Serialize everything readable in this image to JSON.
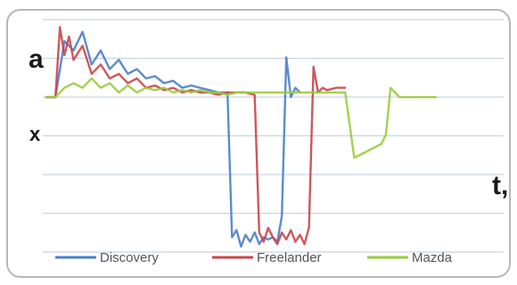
{
  "chart_data": {
    "type": "line",
    "ylabel": "a",
    "xlabel": "t,",
    "y_marker": "x",
    "ylim": [
      0,
      10
    ],
    "xlim": [
      0,
      100
    ],
    "grid": true,
    "legend_placement": "bottom",
    "series": [
      {
        "name": "Discovery",
        "color": "#4a7fc8",
        "x": [
          0,
          2,
          4,
          6,
          8,
          10,
          12,
          14,
          16,
          18,
          20,
          22,
          24,
          26,
          28,
          30,
          32,
          34,
          36,
          38,
          40,
          41,
          42,
          43,
          44,
          45,
          46,
          47,
          48,
          49,
          50,
          51,
          52,
          53,
          54,
          55,
          56
        ],
        "y": [
          6.6,
          6.6,
          9.0,
          8.6,
          9.4,
          8.0,
          8.6,
          7.8,
          8.2,
          7.6,
          7.8,
          7.4,
          7.5,
          7.2,
          7.3,
          7.0,
          7.1,
          7.0,
          6.9,
          6.8,
          6.8,
          0.6,
          0.9,
          0.2,
          0.7,
          0.4,
          0.8,
          0.3,
          0.6,
          0.5,
          0.6,
          0.4,
          1.5,
          8.3,
          6.6,
          7.0,
          6.8
        ]
      },
      {
        "name": "Freelander",
        "color": "#c8454a",
        "x": [
          0,
          2,
          3,
          4,
          5,
          6,
          8,
          10,
          12,
          14,
          16,
          18,
          20,
          22,
          24,
          26,
          28,
          30,
          32,
          34,
          36,
          38,
          40,
          42,
          44,
          46,
          47,
          48,
          49,
          50,
          51,
          52,
          53,
          54,
          55,
          56,
          57,
          58,
          59,
          60,
          61,
          62,
          64,
          66
        ],
        "y": [
          6.6,
          6.6,
          9.6,
          8.4,
          9.2,
          8.2,
          8.8,
          7.6,
          8.0,
          7.4,
          7.6,
          7.2,
          7.4,
          7.0,
          7.1,
          6.9,
          7.0,
          6.8,
          6.9,
          6.8,
          6.8,
          6.7,
          6.8,
          6.8,
          6.8,
          6.7,
          0.8,
          0.4,
          1.0,
          0.6,
          0.3,
          0.8,
          0.5,
          0.9,
          0.4,
          0.7,
          0.3,
          1.0,
          7.9,
          6.8,
          7.0,
          6.9,
          7.0,
          7.0
        ]
      },
      {
        "name": "Mazda",
        "color": "#9acc3c",
        "x": [
          0,
          2,
          4,
          6,
          8,
          10,
          12,
          14,
          16,
          18,
          20,
          22,
          24,
          26,
          28,
          30,
          32,
          34,
          36,
          38,
          40,
          42,
          44,
          46,
          48,
          50,
          52,
          54,
          56,
          58,
          60,
          62,
          64,
          66,
          68,
          70,
          72,
          74,
          75,
          76,
          78,
          82,
          86
        ],
        "y": [
          6.6,
          6.6,
          7.0,
          7.2,
          7.0,
          7.4,
          7.0,
          7.2,
          6.8,
          7.1,
          6.8,
          7.0,
          6.9,
          7.0,
          6.8,
          6.9,
          6.8,
          6.9,
          6.8,
          6.8,
          6.7,
          6.8,
          6.8,
          6.8,
          6.8,
          6.8,
          6.8,
          6.8,
          6.8,
          6.8,
          6.8,
          6.8,
          6.8,
          6.8,
          4.0,
          4.2,
          4.4,
          4.6,
          5.0,
          7.0,
          6.6,
          6.6,
          6.6
        ]
      }
    ]
  }
}
